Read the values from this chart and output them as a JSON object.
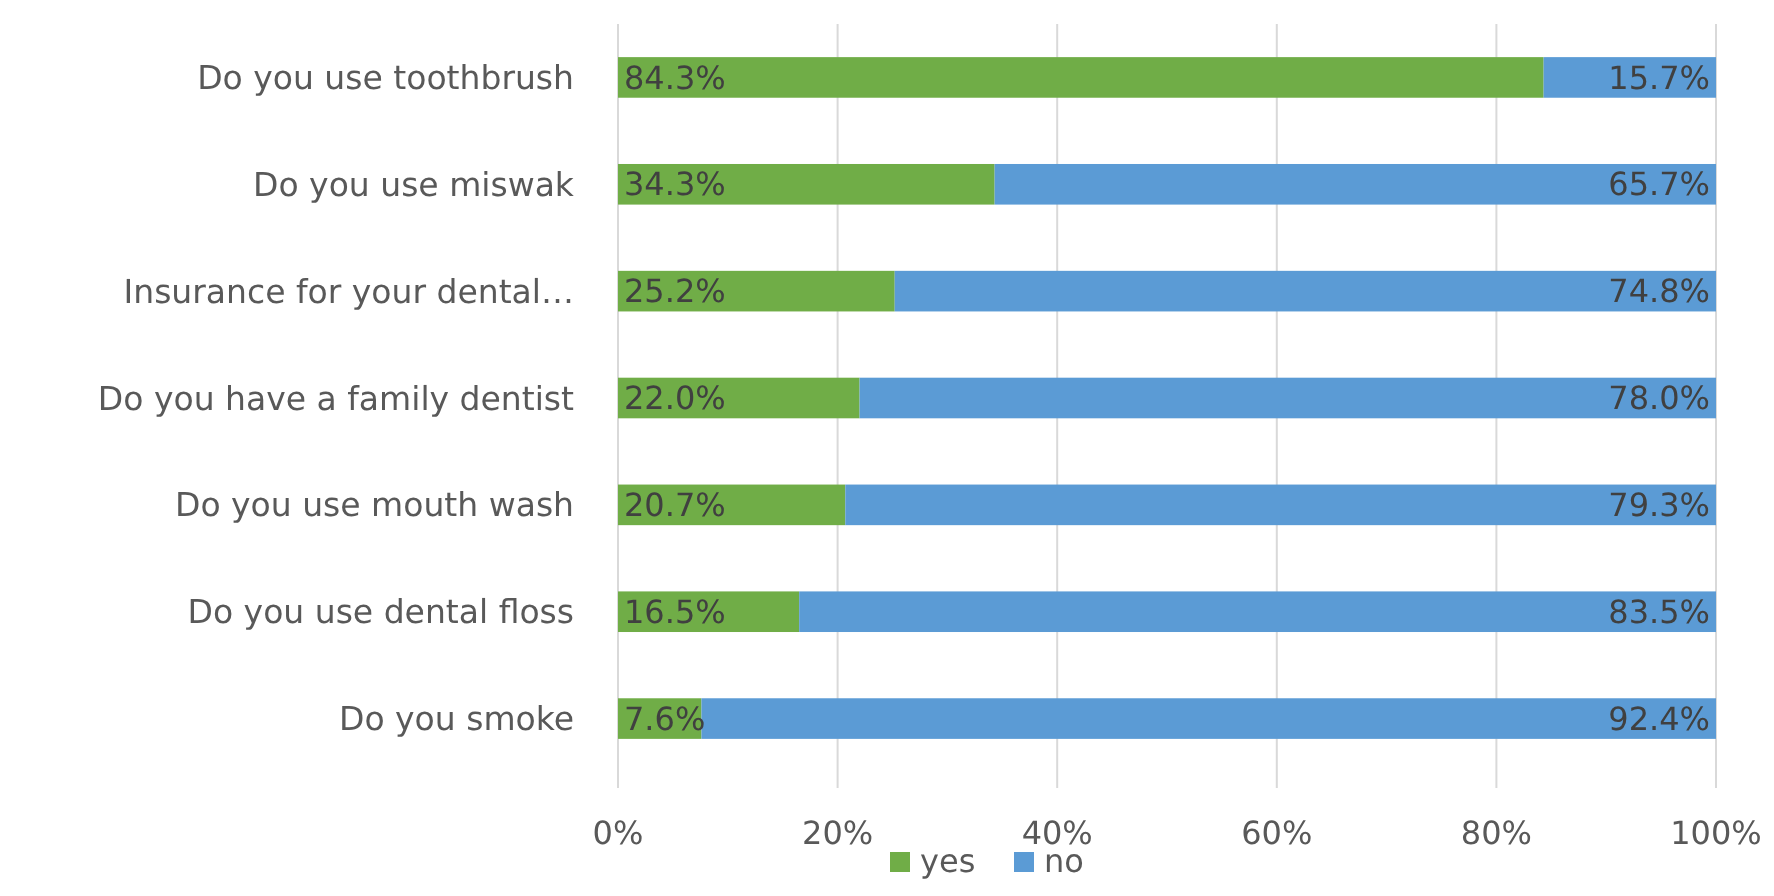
{
  "chart_data": {
    "type": "bar",
    "orientation": "horizontal",
    "stacked": true,
    "categories": [
      "Do you use toothbrush",
      "Do you use miswak",
      "Insurance for your dental…",
      "Do you have a family dentist",
      "Do you use mouth wash",
      "Do you use dental floss",
      "Do you smoke"
    ],
    "series": [
      {
        "name": "yes",
        "color": "#70ad47",
        "values": [
          84.3,
          34.3,
          25.2,
          22.0,
          20.7,
          16.5,
          7.6
        ],
        "value_labels": [
          "84.3%",
          "34.3%",
          "25.2%",
          "22.0%",
          "20.7%",
          "16.5%",
          "7.6%"
        ]
      },
      {
        "name": "no",
        "color": "#5b9bd5",
        "values": [
          15.7,
          65.7,
          74.8,
          78.0,
          79.3,
          83.5,
          92.4
        ],
        "value_labels": [
          "15.7%",
          "65.7%",
          "74.8%",
          "78.0%",
          "79.3%",
          "83.5%",
          "92.4%"
        ]
      }
    ],
    "xlim": [
      0,
      100
    ],
    "xticks": [
      {
        "value": 0,
        "label": "0%"
      },
      {
        "value": 20,
        "label": "20%"
      },
      {
        "value": 40,
        "label": "40%"
      },
      {
        "value": 60,
        "label": "60%"
      },
      {
        "value": 80,
        "label": "80%"
      },
      {
        "value": 100,
        "label": "100%"
      }
    ],
    "grid": "x",
    "legend": "bottom"
  }
}
